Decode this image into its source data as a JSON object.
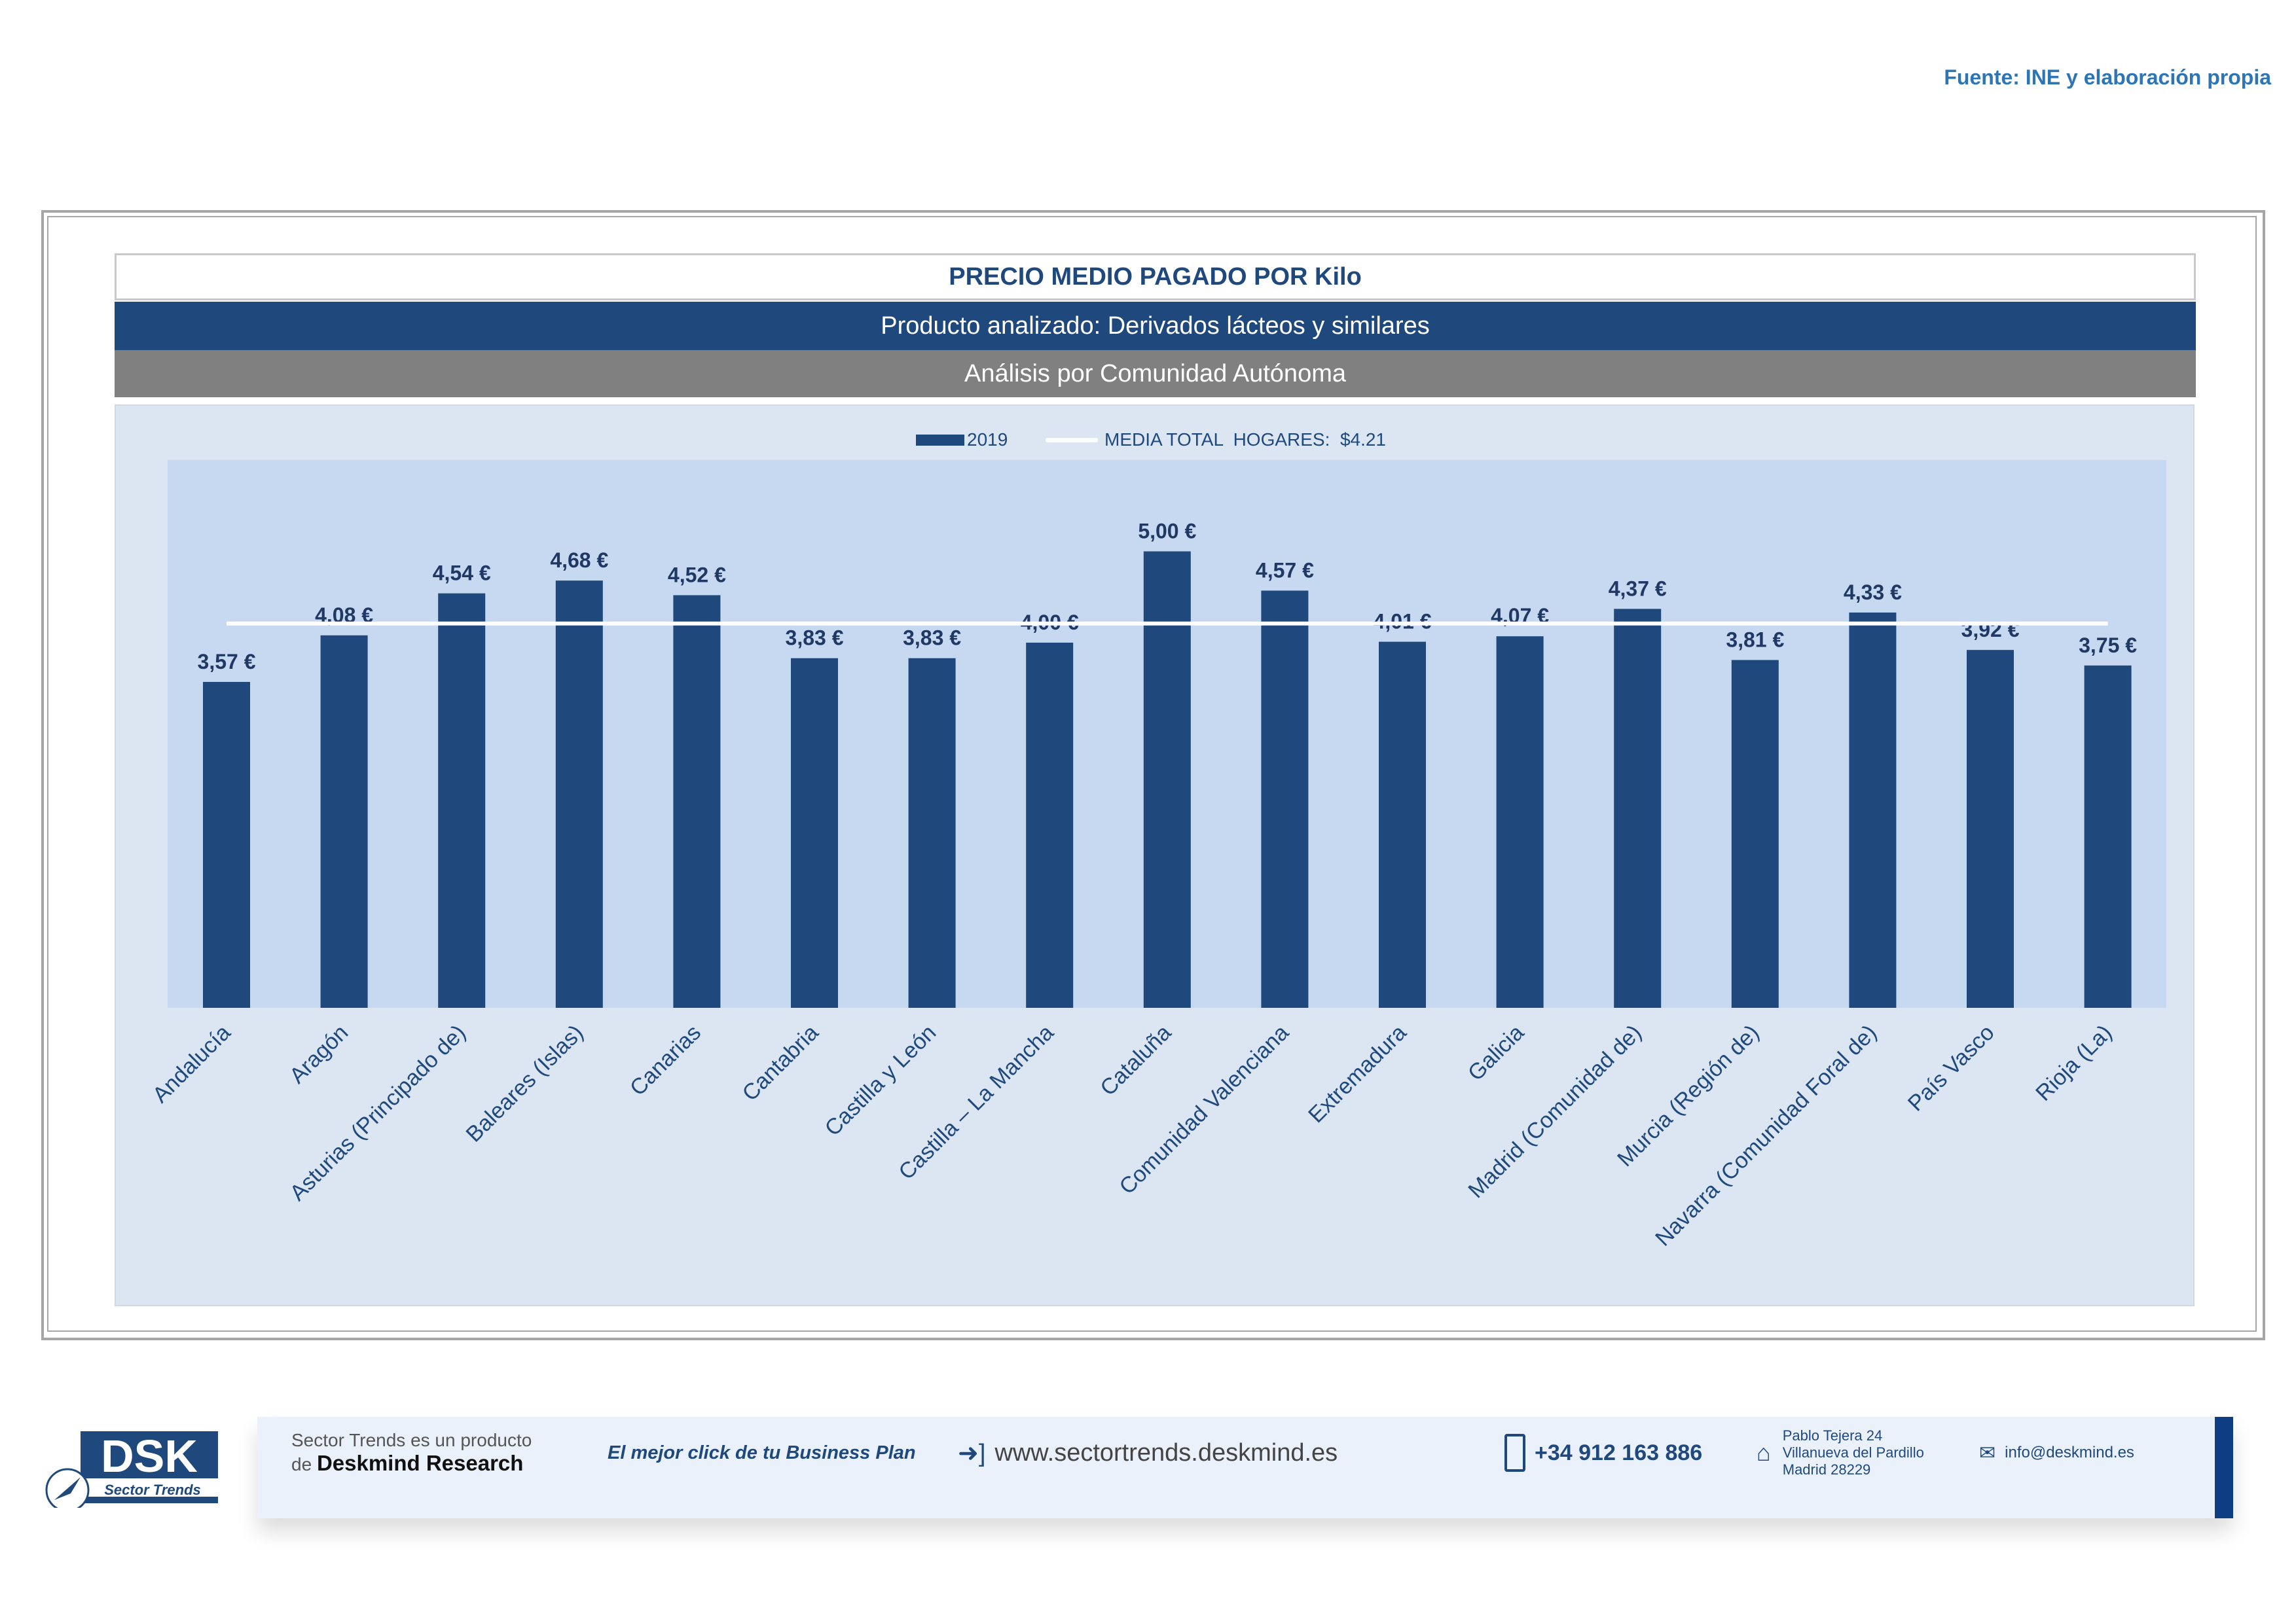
{
  "source": "Fuente: INE y elaboración propia",
  "header": {
    "title": "PRECIO MEDIO PAGADO POR Kilo",
    "product": "Producto analizado: Derivados lácteos y similares",
    "analysis": "Análisis por Comunidad Autónoma"
  },
  "chart_data": {
    "type": "bar",
    "title": "PRECIO MEDIO PAGADO POR Kilo",
    "xlabel": "",
    "ylabel": "",
    "ylim": [
      0,
      6
    ],
    "grid": false,
    "legend_position": "top-center",
    "legend": [
      "2019",
      "MEDIA TOTAL  HOGARES:  $4.21"
    ],
    "categories": [
      "Andalucía",
      "Aragón",
      "Asturias (Principado de)",
      "Baleares (Islas)",
      "Canarias",
      "Cantabria",
      "Castilla y León",
      "Castilla – La Mancha",
      "Cataluña",
      "Comunidad Valenciana",
      "Extremadura",
      "Galicia",
      "Madrid (Comunidad de)",
      "Murcia (Región de)",
      "Navarra (Comunidad Foral de)",
      "País Vasco",
      "Rioja (La)"
    ],
    "series": [
      {
        "name": "2019",
        "values": [
          3.57,
          4.08,
          4.54,
          4.68,
          4.52,
          3.83,
          3.83,
          4.0,
          5.0,
          4.57,
          4.01,
          4.07,
          4.37,
          3.81,
          4.33,
          3.92,
          3.75
        ]
      }
    ],
    "data_labels": [
      "3,57 €",
      "4,08 €",
      "4,54 €",
      "4,68 €",
      "4,52 €",
      "3,83 €",
      "3,83 €",
      "4,00 €",
      "5,00 €",
      "4,57 €",
      "4,01 €",
      "4,07 €",
      "4,37 €",
      "3,81 €",
      "4,33 €",
      "3,92 €",
      "3,75 €"
    ],
    "reference_line": {
      "name": "MEDIA TOTAL  HOGARES:  $4.21",
      "value": 4.21
    },
    "colors": {
      "bar": "#1f497d",
      "line": "#ffffff",
      "plot_bg": "#c6d9f1",
      "chart_bg": "#dce6f2"
    }
  },
  "footer": {
    "logo": "DSK Sector Trends",
    "product_line1": "Sector Trends es un producto",
    "product_line2_prefix": "de",
    "product_line2_brand": "Deskmind Research",
    "slogan": "El mejor click de tu Business Plan",
    "website": "www.sectortrends.deskmind.es",
    "phone": "+34 912 163 886",
    "address": [
      "Pablo Tejera 24",
      "Villanueva del Pardillo",
      "Madrid 28229"
    ],
    "email": "info@deskmind.es"
  }
}
